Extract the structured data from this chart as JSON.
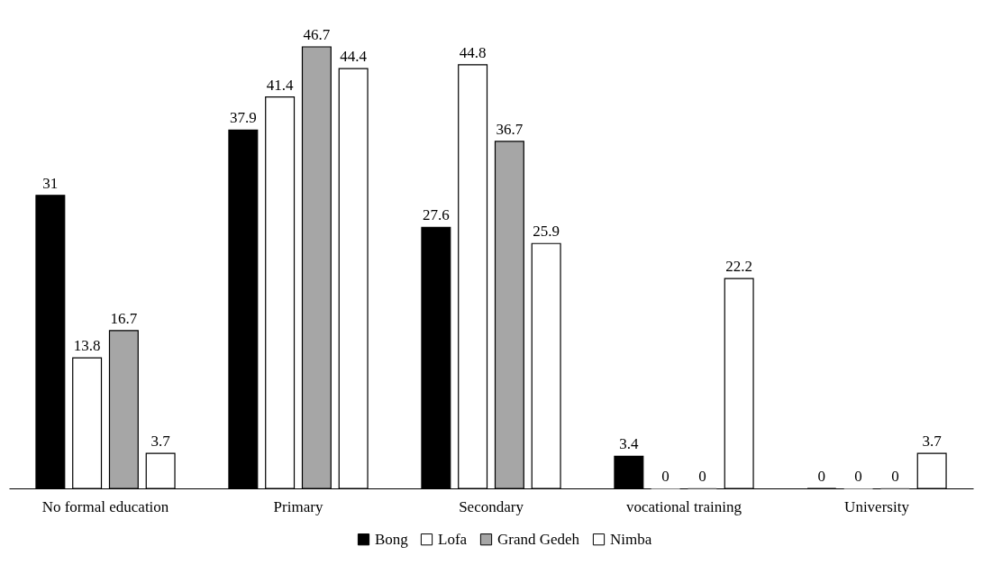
{
  "chart_data": {
    "type": "bar",
    "categories": [
      "No formal education",
      "Primary",
      "Secondary",
      "vocational training",
      "University"
    ],
    "series": [
      {
        "name": "Bong",
        "color": "#000000",
        "values": [
          31,
          37.9,
          27.6,
          3.4,
          0
        ]
      },
      {
        "name": "Lofa",
        "color": "#ffffff",
        "values": [
          13.8,
          41.4,
          44.8,
          0,
          0
        ]
      },
      {
        "name": "Grand Gedeh",
        "color": "#a6a6a6",
        "values": [
          16.7,
          46.7,
          36.7,
          0,
          0
        ]
      },
      {
        "name": "Nimba",
        "color": "#ffffff",
        "values": [
          3.7,
          44.4,
          25.9,
          22.2,
          3.7
        ]
      }
    ],
    "data_labels": true,
    "legend": "bottom",
    "grid": false
  }
}
